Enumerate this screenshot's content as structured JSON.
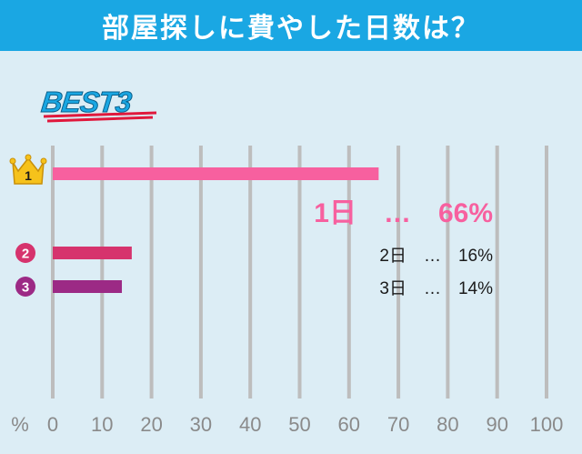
{
  "header": {
    "title": "部屋探しに費やした日数は？"
  },
  "badge": {
    "text": "BEST3",
    "color": "#1aa7e3",
    "underline_color": "#e0183c"
  },
  "chart_data": {
    "type": "bar",
    "orientation": "horizontal",
    "categories": [
      "1日",
      "2日",
      "3日"
    ],
    "values": [
      66,
      16,
      14
    ],
    "ranks": [
      1,
      2,
      3
    ],
    "annotations": [
      "1日　…　66%",
      "2日　…　16%",
      "3日　…　14%"
    ],
    "colors": [
      "#f7609f",
      "#d6336d",
      "#9c2a85"
    ],
    "xlim": [
      0,
      100
    ],
    "xticks": [
      "0",
      "10",
      "20",
      "30",
      "40",
      "50",
      "60",
      "70",
      "80",
      "90",
      "100"
    ],
    "xlabel": "%",
    "grid": true
  }
}
